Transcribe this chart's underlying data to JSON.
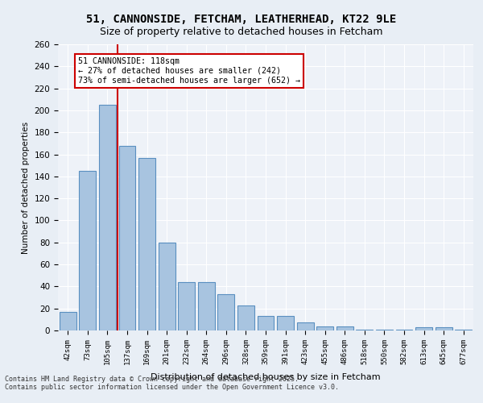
{
  "title1": "51, CANNONSIDE, FETCHAM, LEATHERHEAD, KT22 9LE",
  "title2": "Size of property relative to detached houses in Fetcham",
  "xlabel": "Distribution of detached houses by size in Fetcham",
  "ylabel": "Number of detached properties",
  "categories": [
    "42sqm",
    "73sqm",
    "105sqm",
    "137sqm",
    "169sqm",
    "201sqm",
    "232sqm",
    "264sqm",
    "296sqm",
    "328sqm",
    "359sqm",
    "391sqm",
    "423sqm",
    "455sqm",
    "486sqm",
    "518sqm",
    "550sqm",
    "582sqm",
    "613sqm",
    "645sqm",
    "677sqm"
  ],
  "values": [
    17,
    145,
    205,
    168,
    157,
    80,
    44,
    44,
    33,
    23,
    13,
    13,
    7,
    4,
    4,
    1,
    1,
    1,
    3,
    3,
    1
  ],
  "bar_color": "#a8c4e0",
  "bar_edge_color": "#5a8fc0",
  "vline_x": 2,
  "vline_color": "#cc0000",
  "annotation_text": "51 CANNONSIDE: 118sqm\n← 27% of detached houses are smaller (242)\n73% of semi-detached houses are larger (652) →",
  "annotation_box_color": "#ffffff",
  "annotation_box_edge": "#cc0000",
  "bg_color": "#e8eef5",
  "plot_bg_color": "#eef2f8",
  "footer": "Contains HM Land Registry data © Crown copyright and database right 2025.\nContains public sector information licensed under the Open Government Licence v3.0.",
  "ylim": [
    0,
    260
  ],
  "yticks": [
    0,
    20,
    40,
    60,
    80,
    100,
    120,
    140,
    160,
    180,
    200,
    220,
    240,
    260
  ]
}
